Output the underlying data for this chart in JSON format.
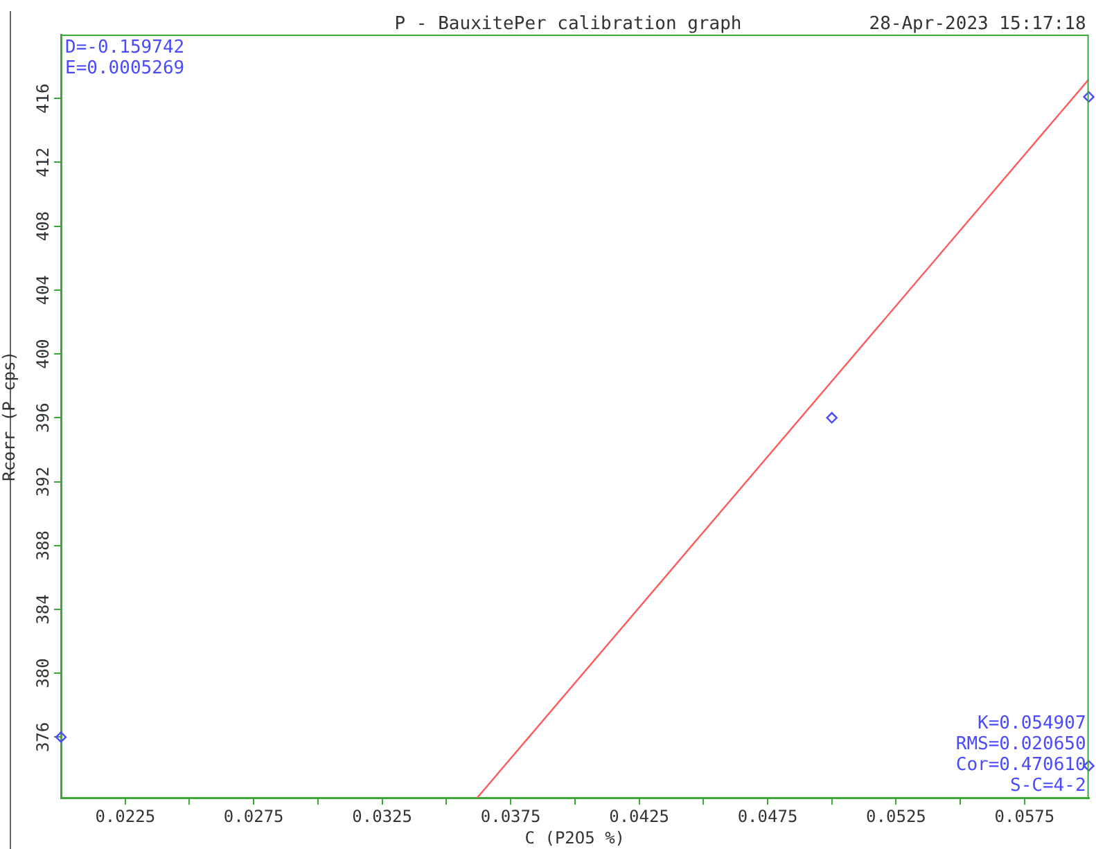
{
  "chart_data": {
    "type": "scatter",
    "title": "P - BauxitePer calibration graph",
    "xlabel": "C (P2O5 %)",
    "ylabel": "Rcorr (P cps)",
    "annotations": [
      "28-Apr-2023 15:17:18",
      "D=-0.159742",
      "E=0.0005269",
      "K=0.054907",
      "RMS=0.020650",
      "Cor=0.470610",
      "S-C=4-2"
    ],
    "series": [
      {
        "color": "#4a4aff",
        "marker": "diamond",
        "x": [
          0.02,
          0.05,
          0.06,
          0.06
        ],
        "values": [
          376,
          396,
          416.1,
          374.2
        ]
      },
      {
        "type": "line",
        "color": "#ff5a5a",
        "marker": "none",
        "x": [
          0.0362,
          0.06
        ],
        "values": [
          372.2,
          417.2
        ]
      }
    ],
    "xlim": [
      0.02,
      0.06
    ],
    "xticks": [
      {
        "value": 0.0225,
        "label": "0.0225"
      },
      {
        "value": 0.025,
        "label": null
      },
      {
        "value": 0.0275,
        "label": "0.0275"
      },
      {
        "value": 0.03,
        "label": null
      },
      {
        "value": 0.0325,
        "label": "0.0325"
      },
      {
        "value": 0.035,
        "label": null
      },
      {
        "value": 0.0375,
        "label": "0.0375"
      },
      {
        "value": 0.04,
        "label": null
      },
      {
        "value": 0.0425,
        "label": "0.0425"
      },
      {
        "value": 0.045,
        "label": null
      },
      {
        "value": 0.0475,
        "label": "0.0475"
      },
      {
        "value": 0.05,
        "label": null
      },
      {
        "value": 0.0525,
        "label": "0.0525"
      },
      {
        "value": 0.055,
        "label": null
      },
      {
        "value": 0.0575,
        "label": "0.0575"
      }
    ],
    "ylim": [
      372.2,
      420
    ],
    "yticks": [
      376,
      380,
      384,
      388,
      392,
      396,
      400,
      404,
      408,
      412,
      416
    ],
    "grid": false,
    "legend": false
  }
}
